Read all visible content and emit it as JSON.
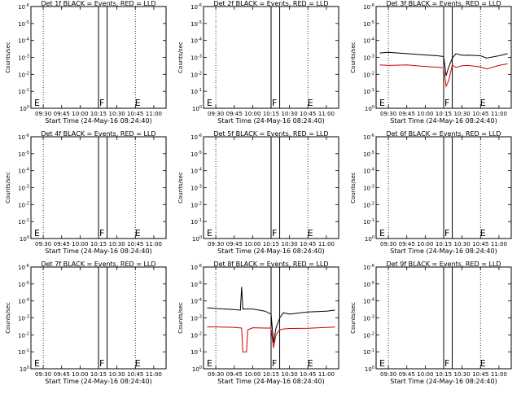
{
  "page": {
    "x_axis_label": "Start Time (24-May-16 08:24:40)",
    "y_axis_label": "Counts/sec",
    "x_ticks": [
      "09:30",
      "09:45",
      "10:00",
      "10:15",
      "10:30",
      "10:45",
      "11:00"
    ],
    "y_ticks": [
      "10^-6",
      "10^-5",
      "10^-4",
      "10^-3",
      "10^-2",
      "10^-1",
      "10^0"
    ],
    "event_colors": {
      "events": "#000000",
      "lld": "#cc0000"
    }
  },
  "chart_data": [
    {
      "type": "line",
      "title": "Det 1f BLACK = Events, RED = LLD",
      "markers": [
        "E",
        "F",
        "E"
      ],
      "series": []
    },
    {
      "type": "line",
      "title": "Det 2f BLACK = Events, RED = LLD",
      "markers": [
        "E",
        "F",
        "E"
      ],
      "series": []
    },
    {
      "type": "line",
      "title": "Det 3f BLACK = Events, RED = LLD",
      "markers": [
        "E",
        "F",
        "E"
      ],
      "series": [
        {
          "color": "#cc0000",
          "x": [
            "09:23",
            "09:30",
            "09:45",
            "10:00",
            "10:10",
            "10:15",
            "10:17",
            "10:19",
            "10:22",
            "10:25",
            "10:30",
            "10:35",
            "10:45",
            "10:50",
            "11:00",
            "11:07"
          ],
          "values": [
            0.0028,
            0.003,
            0.0028,
            0.0034,
            0.0038,
            0.0041,
            0.05,
            0.025,
            0.0028,
            0.004,
            0.0031,
            0.003,
            0.0037,
            0.0048,
            0.003,
            0.0024
          ]
        },
        {
          "color": "#000000",
          "x": [
            "09:23",
            "09:30",
            "09:45",
            "10:00",
            "10:10",
            "10:15",
            "10:17",
            "10:19",
            "10:22",
            "10:25",
            "10:30",
            "10:35",
            "10:45",
            "10:50",
            "11:00",
            "11:07"
          ],
          "values": [
            0.00055,
            0.0005,
            0.0006,
            0.00072,
            0.0008,
            0.0009,
            0.012,
            0.004,
            0.0011,
            0.0006,
            0.00075,
            0.00073,
            0.0008,
            0.0011,
            0.0008,
            0.0006
          ]
        }
      ]
    },
    {
      "type": "line",
      "title": "Det 4f BLACK = Events, RED = LLD",
      "markers": [
        "E",
        "F",
        "E"
      ],
      "series": []
    },
    {
      "type": "line",
      "title": "Det 5f BLACK = Events, RED = LLD",
      "markers": [
        "E",
        "F",
        "E"
      ],
      "series": []
    },
    {
      "type": "line",
      "title": "Det 6f BLACK = Events, RED = LLD",
      "markers": [
        "E",
        "F",
        "E"
      ],
      "series": []
    },
    {
      "type": "line",
      "title": "Det 7f BLACK = Events, RED = LLD",
      "markers": [
        "E",
        "F",
        "E"
      ],
      "series": []
    },
    {
      "type": "line",
      "title": "Det 8f BLACK = Events, RED = LLD",
      "markers": [
        "E",
        "F",
        "E"
      ],
      "series": [
        {
          "color": "#cc0000",
          "x": [
            "09:23",
            "09:30",
            "09:45",
            "09:51",
            "09:52",
            "09:55",
            "09:56",
            "10:00",
            "10:10",
            "10:15",
            "10:17",
            "10:19",
            "10:22",
            "10:25",
            "10:30",
            "10:45",
            "11:00",
            "11:07"
          ],
          "values": [
            0.0034,
            0.0034,
            0.0036,
            0.004,
            0.1,
            0.1,
            0.005,
            0.0038,
            0.004,
            0.004,
            0.06,
            0.01,
            0.005,
            0.0045,
            0.0042,
            0.0041,
            0.0037,
            0.0035
          ]
        },
        {
          "color": "#000000",
          "x": [
            "09:23",
            "09:30",
            "09:45",
            "09:50",
            "09:51",
            "09:52",
            "10:00",
            "10:10",
            "10:15",
            "10:17",
            "10:19",
            "10:22",
            "10:25",
            "10:30",
            "10:45",
            "11:00",
            "11:07"
          ],
          "values": [
            0.00025,
            0.00028,
            0.00032,
            0.00035,
            1.5e-05,
            0.0003,
            0.0003,
            0.0004,
            0.0006,
            0.03,
            0.004,
            0.001,
            0.0005,
            0.0006,
            0.00045,
            0.0004,
            0.00035
          ]
        }
      ]
    },
    {
      "type": "line",
      "title": "Det 9f BLACK = Events, RED = LLD",
      "markers": [
        "E",
        "F",
        "E"
      ],
      "series": []
    }
  ]
}
